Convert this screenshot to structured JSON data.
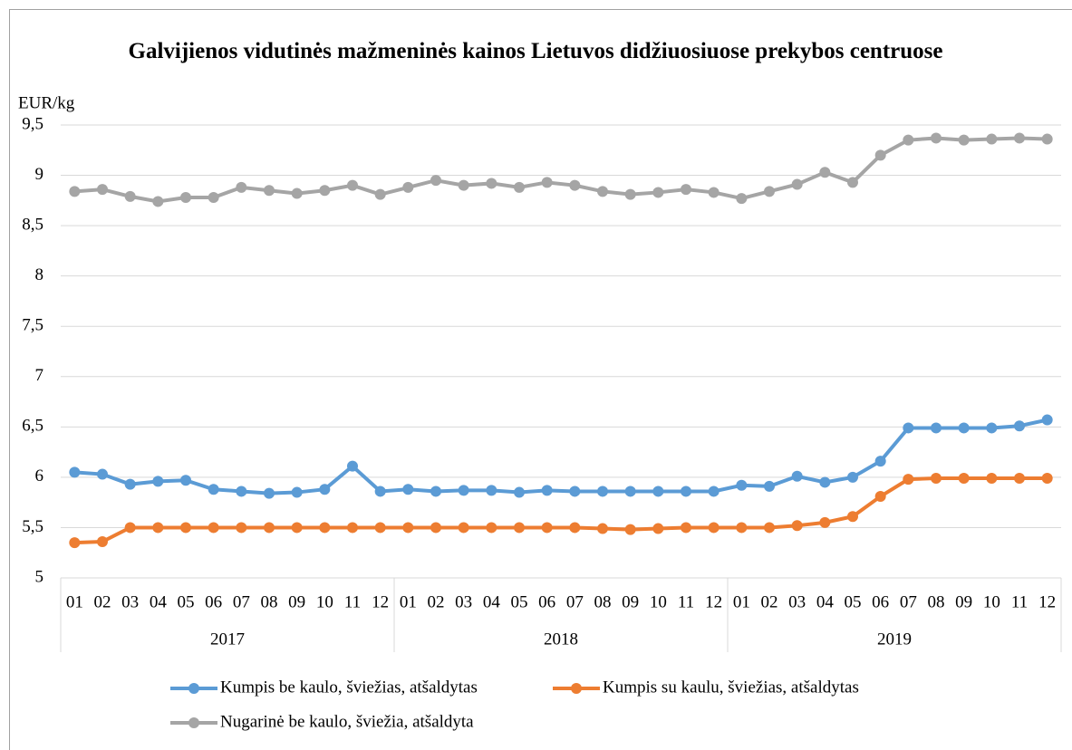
{
  "chart_data": {
    "type": "line",
    "title": "Galvijienos vidutinės mažmeninės kainos Lietuvos didžiuosiuose prekybos centruose",
    "y_label": "EUR/kg",
    "category_groups": [
      {
        "name": "2017",
        "categories": [
          "01",
          "02",
          "03",
          "04",
          "05",
          "06",
          "07",
          "08",
          "09",
          "10",
          "11",
          "12"
        ]
      },
      {
        "name": "2018",
        "categories": [
          "01",
          "02",
          "03",
          "04",
          "05",
          "06",
          "07",
          "08",
          "09",
          "10",
          "11",
          "12"
        ]
      },
      {
        "name": "2019",
        "categories": [
          "01",
          "02",
          "03",
          "04",
          "05",
          "06",
          "07",
          "08",
          "09",
          "10",
          "11",
          "12"
        ]
      }
    ],
    "series": [
      {
        "name": "Kumpis be kaulo, šviežias, atšaldytas",
        "color": "#5b9bd5",
        "values": [
          6.05,
          6.03,
          5.93,
          5.96,
          5.97,
          5.88,
          5.86,
          5.84,
          5.85,
          5.88,
          6.11,
          5.86,
          5.88,
          5.86,
          5.87,
          5.87,
          5.85,
          5.87,
          5.86,
          5.86,
          5.86,
          5.86,
          5.86,
          5.86,
          5.92,
          5.91,
          6.01,
          5.95,
          6.0,
          6.16,
          6.49,
          6.49,
          6.49,
          6.49,
          6.51,
          6.57
        ]
      },
      {
        "name": "Kumpis su kaulu, šviežias, atšaldytas",
        "color": "#ed7d31",
        "values": [
          5.35,
          5.36,
          5.5,
          5.5,
          5.5,
          5.5,
          5.5,
          5.5,
          5.5,
          5.5,
          5.5,
          5.5,
          5.5,
          5.5,
          5.5,
          5.5,
          5.5,
          5.5,
          5.5,
          5.49,
          5.48,
          5.49,
          5.5,
          5.5,
          5.5,
          5.5,
          5.52,
          5.55,
          5.61,
          5.81,
          5.98,
          5.99,
          5.99,
          5.99,
          5.99,
          5.99
        ]
      },
      {
        "name": "Nugarinė be kaulo, šviežia, atšaldyta",
        "color": "#a5a5a5",
        "values": [
          8.84,
          8.86,
          8.79,
          8.74,
          8.78,
          8.78,
          8.88,
          8.85,
          8.82,
          8.85,
          8.9,
          8.81,
          8.88,
          8.95,
          8.9,
          8.92,
          8.88,
          8.93,
          8.9,
          8.84,
          8.81,
          8.83,
          8.86,
          8.83,
          8.77,
          8.84,
          8.91,
          9.03,
          8.93,
          9.2,
          9.35,
          9.37,
          9.35,
          9.36,
          9.37,
          9.36
        ]
      }
    ],
    "ylim": [
      5,
      9.5
    ],
    "yticks": [
      5,
      {
        "value": 5.5,
        "label": "5,5"
      },
      6,
      {
        "value": 6.5,
        "label": "6,5"
      },
      7,
      {
        "value": 7.5,
        "label": "7,5"
      },
      8,
      {
        "value": 8.5,
        "label": "8,5"
      },
      9,
      {
        "value": 9.5,
        "label": "9,5"
      }
    ],
    "grid": true,
    "legend": "bottom"
  }
}
